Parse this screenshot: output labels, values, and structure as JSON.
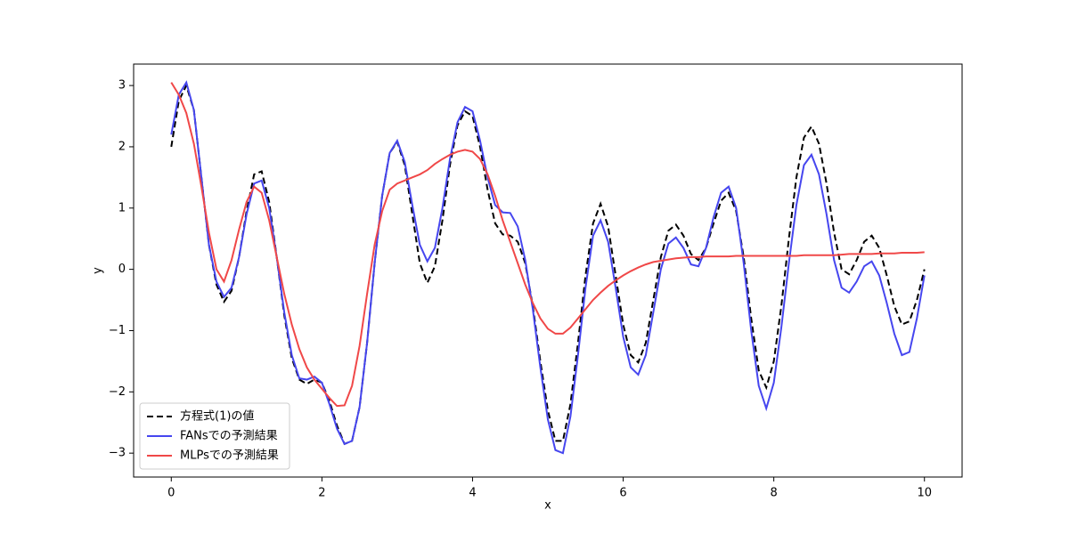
{
  "chart_data": {
    "type": "line",
    "xlabel": "x",
    "ylabel": "y",
    "x": [
      0,
      0.1,
      0.2,
      0.3,
      0.4,
      0.5,
      0.6,
      0.7,
      0.8,
      0.9,
      1,
      1.1,
      1.2,
      1.3,
      1.4,
      1.5,
      1.6,
      1.7,
      1.8,
      1.9,
      2,
      2.1,
      2.2,
      2.3,
      2.4,
      2.5,
      2.6,
      2.7,
      2.8,
      2.9,
      3,
      3.1,
      3.2,
      3.3,
      3.4,
      3.5,
      3.6,
      3.7,
      3.8,
      3.9,
      4,
      4.1,
      4.2,
      4.3,
      4.4,
      4.5,
      4.6,
      4.7,
      4.8,
      4.9,
      5,
      5.1,
      5.2,
      5.3,
      5.4,
      5.5,
      5.6,
      5.7,
      5.8,
      5.9,
      6,
      6.1,
      6.2,
      6.3,
      6.4,
      6.5,
      6.6,
      6.7,
      6.8,
      6.9,
      7,
      7.1,
      7.2,
      7.3,
      7.4,
      7.5,
      7.6,
      7.7,
      7.8,
      7.9,
      8,
      8.1,
      8.2,
      8.3,
      8.4,
      8.5,
      8.6,
      8.7,
      8.8,
      8.9,
      9,
      9.1,
      9.2,
      9.3,
      9.4,
      9.5,
      9.6,
      9.7,
      9.8,
      9.9,
      10
    ],
    "series": [
      {
        "name": "方程式(1)の値",
        "color": "#000000",
        "linestyle": "--",
        "values": [
          2.0,
          2.75,
          3.0,
          2.6,
          1.5,
          0.4,
          -0.25,
          -0.53,
          -0.35,
          0.2,
          0.95,
          1.55,
          1.6,
          1.1,
          0.2,
          -0.75,
          -1.45,
          -1.8,
          -1.87,
          -1.8,
          -1.85,
          -2.15,
          -2.55,
          -2.85,
          -2.8,
          -2.25,
          -1.2,
          0.1,
          1.2,
          1.9,
          2.08,
          1.7,
          0.9,
          0.1,
          -0.22,
          0.05,
          0.8,
          1.7,
          2.35,
          2.58,
          2.5,
          2.0,
          1.3,
          0.75,
          0.57,
          0.55,
          0.45,
          0.1,
          -0.6,
          -1.5,
          -2.3,
          -2.8,
          -2.8,
          -2.2,
          -1.2,
          -0.1,
          0.75,
          1.07,
          0.7,
          -0.1,
          -0.9,
          -1.4,
          -1.52,
          -1.2,
          -0.5,
          0.2,
          0.63,
          0.73,
          0.55,
          0.25,
          0.15,
          0.35,
          0.75,
          1.12,
          1.25,
          0.95,
          0.2,
          -0.8,
          -1.65,
          -1.93,
          -1.5,
          -0.6,
          0.5,
          1.5,
          2.15,
          2.33,
          2.05,
          1.4,
          0.6,
          0.0,
          -0.08,
          0.15,
          0.45,
          0.55,
          0.35,
          -0.1,
          -0.6,
          -0.9,
          -0.85,
          -0.5,
          0.0
        ]
      },
      {
        "name": "FANsでの予測結果",
        "color": "#4646ef",
        "linestyle": "-",
        "values": [
          2.2,
          2.85,
          3.05,
          2.6,
          1.5,
          0.4,
          -0.2,
          -0.45,
          -0.3,
          0.2,
          0.9,
          1.4,
          1.45,
          1.0,
          0.2,
          -0.7,
          -1.4,
          -1.78,
          -1.8,
          -1.75,
          -1.85,
          -2.2,
          -2.6,
          -2.85,
          -2.8,
          -2.25,
          -1.2,
          0.1,
          1.2,
          1.9,
          2.1,
          1.75,
          1.05,
          0.4,
          0.13,
          0.35,
          1.0,
          1.8,
          2.4,
          2.65,
          2.58,
          2.1,
          1.5,
          1.05,
          0.93,
          0.92,
          0.7,
          0.15,
          -0.65,
          -1.6,
          -2.45,
          -2.95,
          -3.0,
          -2.4,
          -1.4,
          -0.3,
          0.55,
          0.8,
          0.45,
          -0.3,
          -1.1,
          -1.6,
          -1.72,
          -1.4,
          -0.7,
          0.0,
          0.42,
          0.52,
          0.35,
          0.08,
          0.05,
          0.35,
          0.85,
          1.25,
          1.35,
          1.0,
          0.1,
          -1.0,
          -1.9,
          -2.27,
          -1.85,
          -0.95,
          0.1,
          1.05,
          1.7,
          1.87,
          1.55,
          0.9,
          0.15,
          -0.3,
          -0.38,
          -0.2,
          0.05,
          0.13,
          -0.1,
          -0.55,
          -1.05,
          -1.4,
          -1.35,
          -0.8,
          -0.1
        ]
      },
      {
        "name": "MLPsでの予測結果",
        "color": "#f04848",
        "linestyle": "-",
        "values": [
          3.05,
          2.85,
          2.55,
          2.05,
          1.35,
          0.6,
          0.0,
          -0.2,
          0.15,
          0.65,
          1.1,
          1.35,
          1.25,
          0.8,
          0.2,
          -0.4,
          -0.9,
          -1.3,
          -1.6,
          -1.8,
          -1.95,
          -2.1,
          -2.23,
          -2.22,
          -1.9,
          -1.25,
          -0.4,
          0.4,
          0.95,
          1.3,
          1.4,
          1.45,
          1.5,
          1.55,
          1.62,
          1.72,
          1.8,
          1.87,
          1.92,
          1.95,
          1.92,
          1.8,
          1.55,
          1.2,
          0.8,
          0.45,
          0.1,
          -0.25,
          -0.55,
          -0.8,
          -0.97,
          -1.05,
          -1.05,
          -0.95,
          -0.8,
          -0.65,
          -0.5,
          -0.38,
          -0.27,
          -0.18,
          -0.1,
          -0.03,
          0.03,
          0.08,
          0.12,
          0.14,
          0.16,
          0.18,
          0.19,
          0.2,
          0.2,
          0.21,
          0.21,
          0.21,
          0.21,
          0.22,
          0.22,
          0.22,
          0.22,
          0.22,
          0.22,
          0.22,
          0.22,
          0.22,
          0.23,
          0.23,
          0.23,
          0.23,
          0.23,
          0.24,
          0.25,
          0.25,
          0.25,
          0.25,
          0.26,
          0.26,
          0.26,
          0.27,
          0.27,
          0.27,
          0.28
        ]
      }
    ],
    "xlim": [
      -0.5,
      10.5
    ],
    "ylim": [
      -3.39,
      3.35
    ],
    "xticks": [
      0,
      2,
      4,
      6,
      8,
      10
    ],
    "yticks": [
      {
        "value": -3,
        "label": "−3"
      },
      {
        "value": -2,
        "label": "−2"
      },
      {
        "value": -1,
        "label": "−1"
      },
      0,
      1,
      2,
      3
    ],
    "legend": "lower left"
  }
}
